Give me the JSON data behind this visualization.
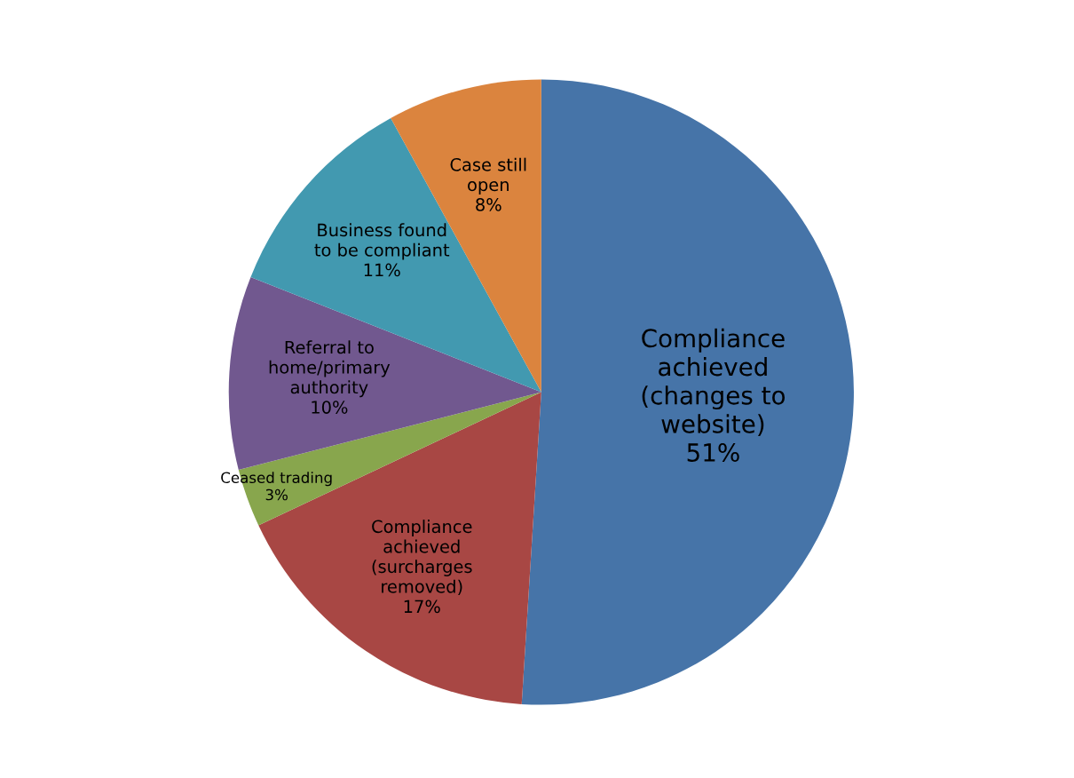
{
  "chart_data": {
    "type": "pie",
    "categories": [
      "Compliance\nachieved\n(changes to\nwebsite)",
      "Compliance\nachieved\n(surcharges\nremoved)",
      "Ceased trading",
      "Referral to\nhome/primary\nauthority",
      "Business found\nto be compliant",
      "Case still\nopen"
    ],
    "values": [
      51,
      17,
      3,
      10,
      11,
      8
    ],
    "value_labels": [
      "51%",
      "17%",
      "3%",
      "10%",
      "11%",
      "8%"
    ],
    "colors": [
      "#4674a8",
      "#a84744",
      "#88a64d",
      "#71588f",
      "#4299b0",
      "#db843e"
    ],
    "legend": false
  }
}
